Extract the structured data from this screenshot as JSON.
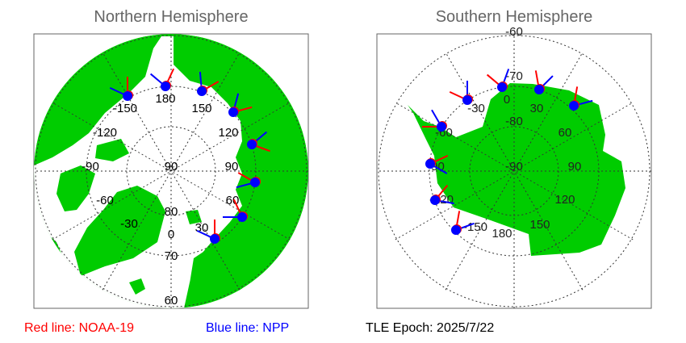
{
  "north": {
    "title": "Northern Hemisphere",
    "lon_labels": [
      "-150",
      "180",
      "150",
      "120",
      "90",
      "60",
      "30",
      "0",
      "-30",
      "-60",
      "-90",
      "-120"
    ],
    "lat_labels": [
      "90",
      "80",
      "70",
      "60"
    ]
  },
  "south": {
    "title": "Southern Hemisphere",
    "lon_labels": [
      "0",
      "30",
      "60",
      "90",
      "120",
      "150",
      "180",
      "-150",
      "-120",
      "-90",
      "-60",
      "-30"
    ],
    "lat_labels": [
      "-60",
      "-70",
      "-80",
      "-90"
    ]
  },
  "legend": {
    "red": "Red line: NOAA-19",
    "blue": "Blue line: NPP",
    "epoch": "TLE Epoch: 2025/7/22"
  },
  "colors": {
    "land": "#00cc00",
    "noaa19": "#ff0000",
    "npp": "#0000ff",
    "title": "#666666"
  }
}
